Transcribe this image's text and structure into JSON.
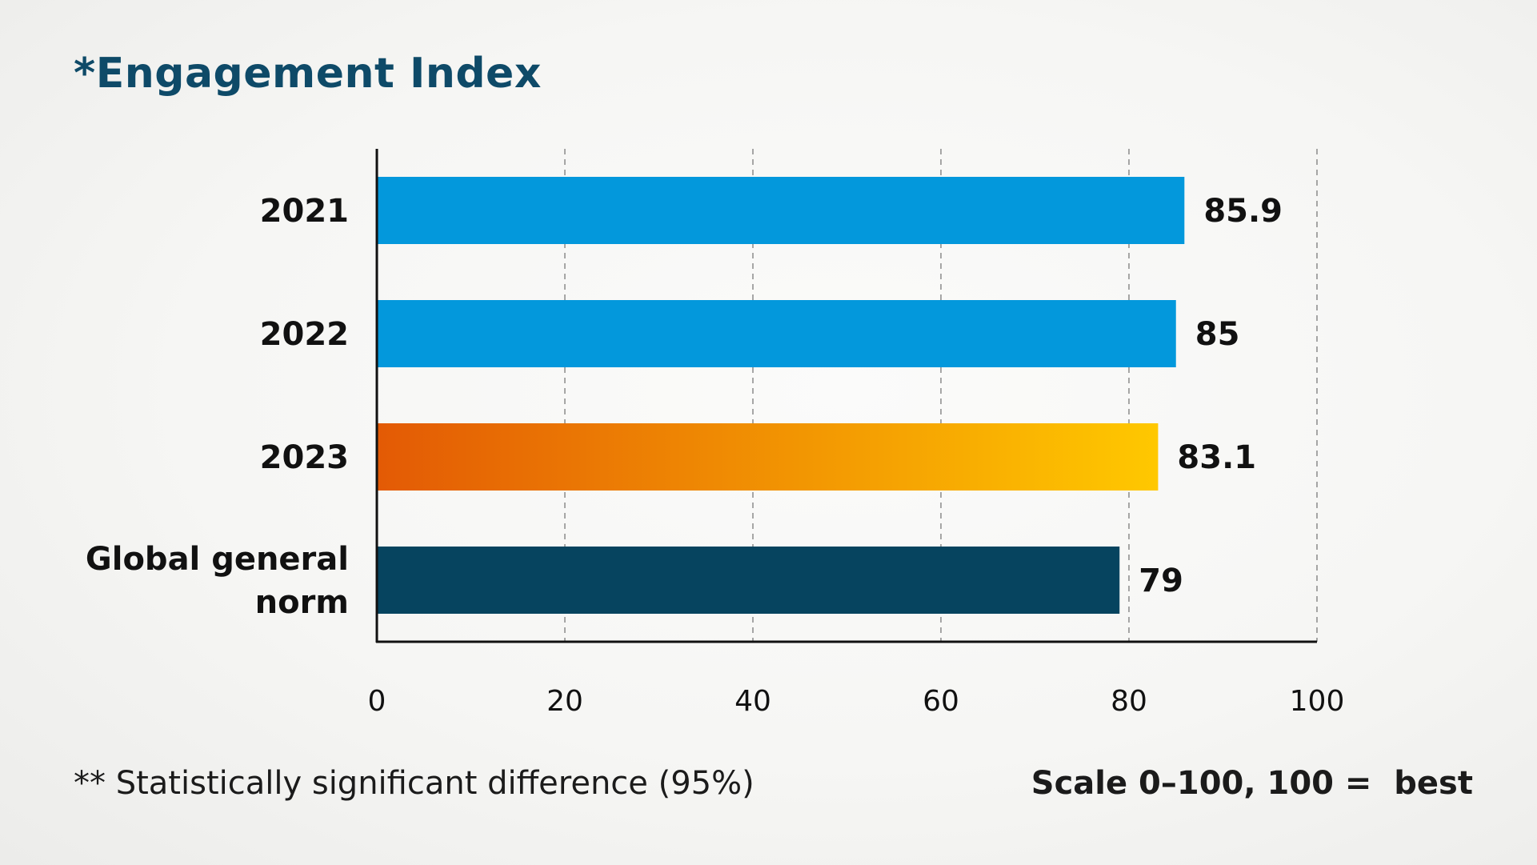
{
  "chart_data": {
    "type": "bar",
    "orientation": "horizontal",
    "title": "*Engagement Index",
    "categories": [
      "2021",
      "2022",
      "2023",
      "Global general norm"
    ],
    "category_lines": [
      [
        "2021"
      ],
      [
        "2022"
      ],
      [
        "2023"
      ],
      [
        "Global general",
        "norm"
      ]
    ],
    "values": [
      85.9,
      85,
      83.1,
      79
    ],
    "value_labels": [
      "85.9",
      "85",
      "83.1",
      "79"
    ],
    "bar_colors": [
      "#0398dc",
      "#0398dc",
      "gradient",
      "#06445f"
    ],
    "gradient_colors": [
      "#e35a05",
      "#ffc800"
    ],
    "xlim": [
      0,
      100
    ],
    "xticks": [
      0,
      20,
      40,
      60,
      80,
      100
    ],
    "xtick_labels": [
      "0",
      "20",
      "40",
      "60",
      "80",
      "100"
    ],
    "grid": "vertical dashed",
    "xlabel": "",
    "ylabel": ""
  },
  "footnote": "** Statistically significant difference (95%)",
  "scale_note": "Scale 0–100, 100 =  best"
}
